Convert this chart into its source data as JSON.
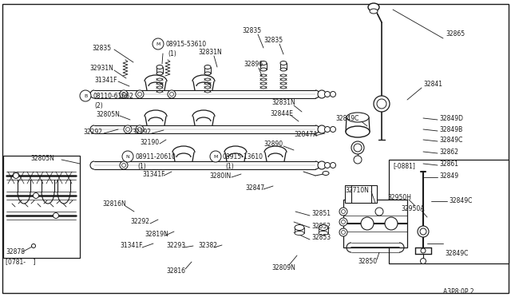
{
  "bg_color": "#ffffff",
  "line_color": "#1a1a1a",
  "fig_width": 6.4,
  "fig_height": 3.72,
  "bottom_caption": "A3P8:0P 2",
  "left_inset_label": "[0781-    ]",
  "right_inset_label": "[-0881]"
}
